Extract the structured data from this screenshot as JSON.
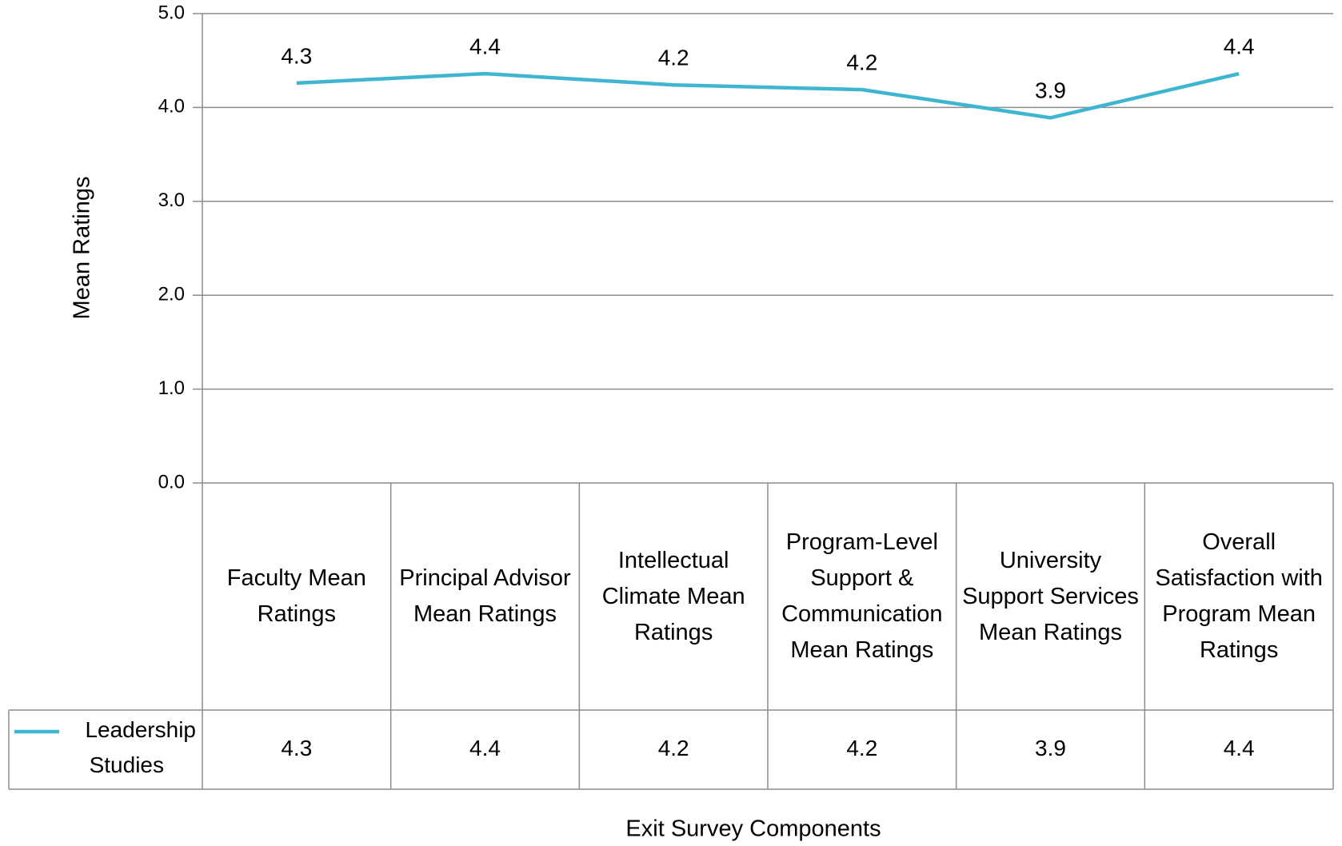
{
  "chart_data": {
    "type": "line",
    "y_axis_label": "Mean Ratings",
    "x_axis_label": "Exit Survey Components",
    "categories": [
      "Faculty Mean Ratings",
      "Principal Advisor Mean Ratings",
      "Intellectual Climate Mean Ratings",
      "Program-Level Support & Communication Mean Ratings",
      "University Support Services Mean Ratings",
      "Overall Satisfaction with Program Mean Ratings"
    ],
    "series": [
      {
        "name": "Leadership Studies",
        "color": "#3fb6cf",
        "values": [
          4.26,
          4.36,
          4.24,
          4.19,
          3.89,
          4.36
        ],
        "value_labels": [
          "4.3",
          "4.4",
          "4.2",
          "4.2",
          "3.9",
          "4.4"
        ]
      }
    ],
    "ylim": [
      0,
      5
    ],
    "yticks": [
      {
        "value": 0,
        "label": "0.0"
      },
      {
        "value": 1,
        "label": "1.0"
      },
      {
        "value": 2,
        "label": "2.0"
      },
      {
        "value": 3,
        "label": "3.0"
      },
      {
        "value": 4,
        "label": "4.0"
      },
      {
        "value": 5,
        "label": "5.0"
      }
    ],
    "grid": true,
    "data_table": true
  }
}
